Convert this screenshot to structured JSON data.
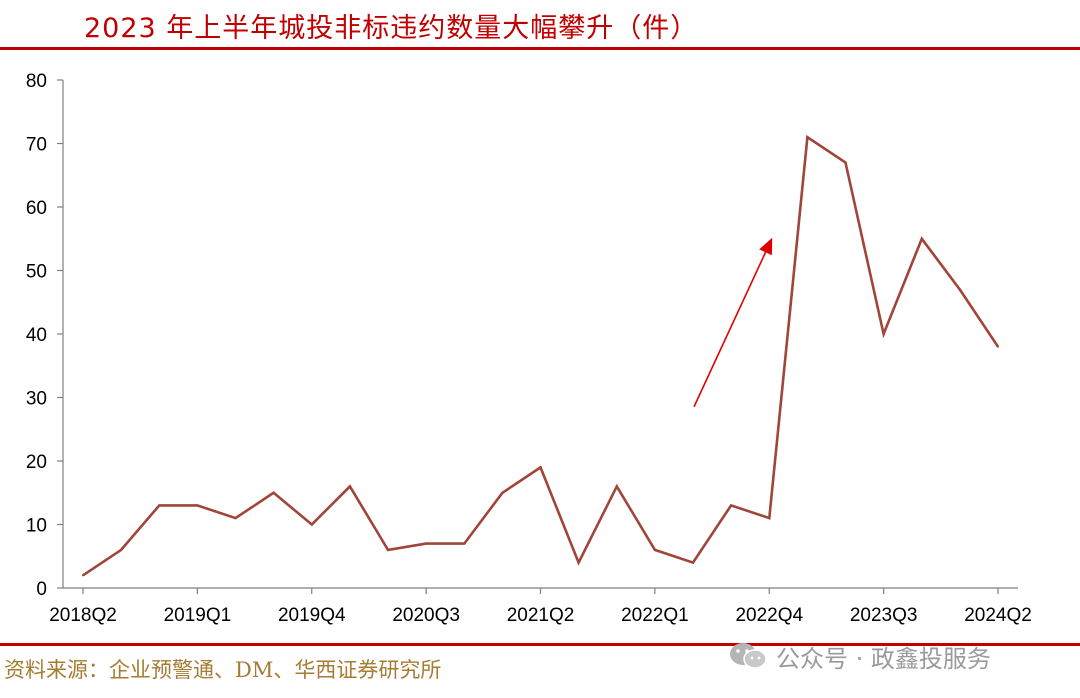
{
  "title": "2023 年上半年城投非标违约数量大幅攀升（件）",
  "source": "资料来源：企业预警通、DM、华西证券研究所",
  "watermark": {
    "text": "公众号 · 政鑫投服务",
    "icon": "wechat-icon"
  },
  "colors": {
    "title": "#c00000",
    "rule": "#c00000",
    "line": "#a0453a",
    "arrow": "#e00000",
    "source": "#a67c32"
  },
  "chart_data": {
    "type": "line",
    "title": "2023 年上半年城投非标违约数量大幅攀升（件）",
    "xlabel": "",
    "ylabel": "",
    "ylim": [
      0,
      80
    ],
    "yticks": [
      0,
      10,
      20,
      30,
      40,
      50,
      60,
      70,
      80
    ],
    "grid": false,
    "x": [
      "2018Q2",
      "2018Q3",
      "2018Q4",
      "2019Q1",
      "2019Q2",
      "2019Q3",
      "2019Q4",
      "2020Q1",
      "2020Q2",
      "2020Q3",
      "2020Q4",
      "2021Q1",
      "2021Q2",
      "2021Q3",
      "2021Q4",
      "2022Q1",
      "2022Q2",
      "2022Q3",
      "2022Q4",
      "2023Q1",
      "2023Q2",
      "2023Q3",
      "2023Q4",
      "2024Q1",
      "2024Q2"
    ],
    "tick_labels": [
      "2018Q2",
      "2019Q1",
      "2019Q4",
      "2020Q3",
      "2021Q2",
      "2022Q1",
      "2022Q4",
      "2023Q3",
      "2024Q2"
    ],
    "series": [
      {
        "values": [
          2,
          6,
          13,
          13,
          11,
          15,
          10,
          16,
          6,
          7,
          7,
          15,
          19,
          4,
          16,
          6,
          4,
          13,
          11,
          71,
          67,
          40,
          55,
          47,
          38
        ]
      }
    ],
    "annotations": [
      {
        "type": "arrow",
        "from": [
          "2022Q2",
          29
        ],
        "to": [
          "2022Q4",
          55
        ]
      }
    ]
  }
}
